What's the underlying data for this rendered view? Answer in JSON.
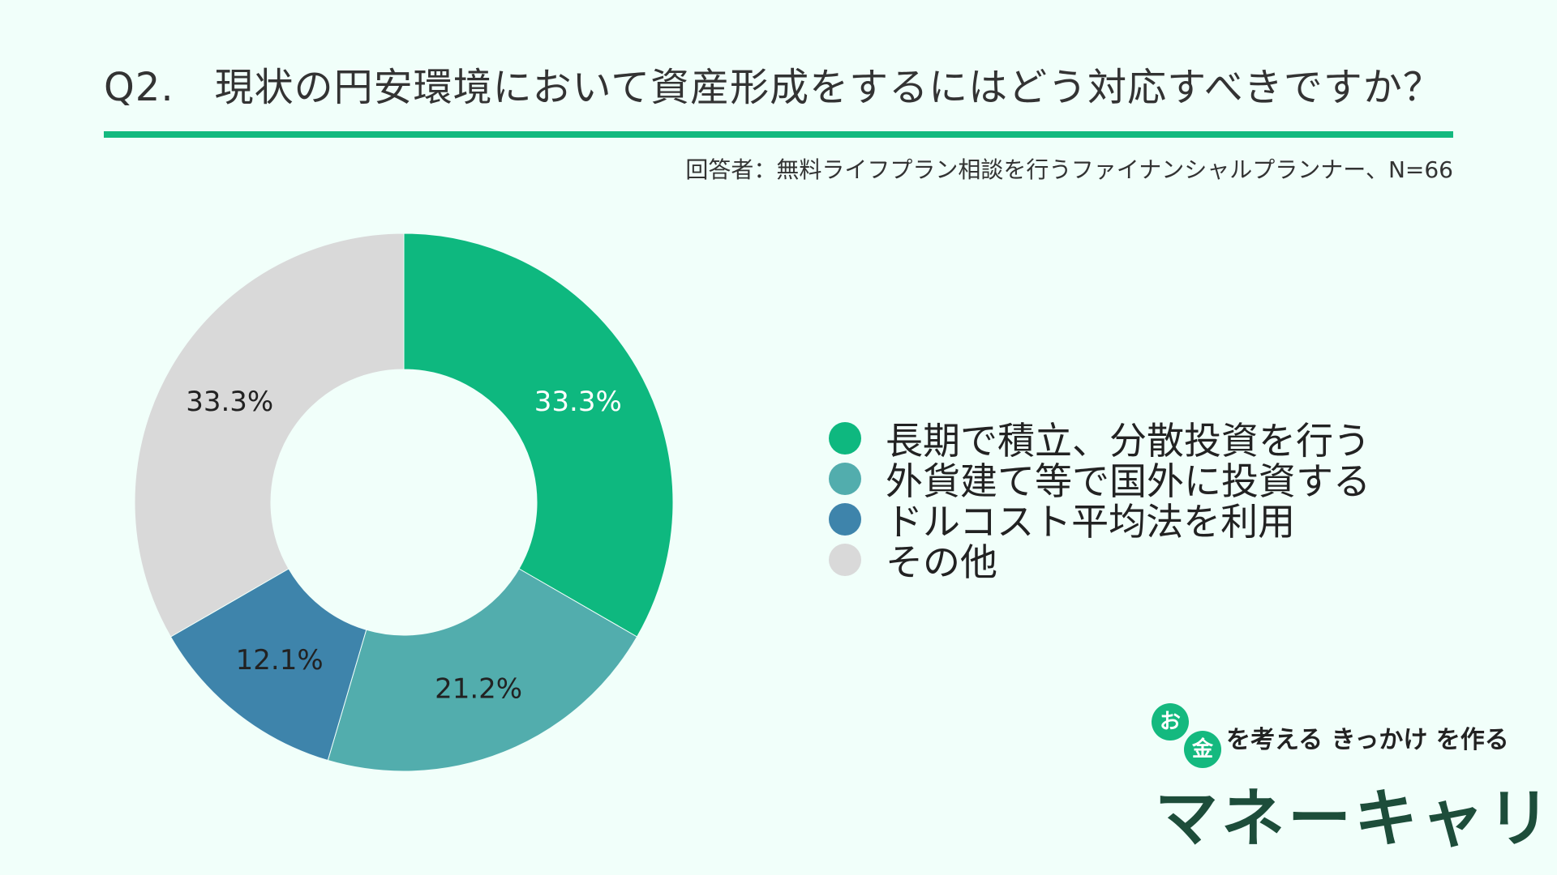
{
  "header": {
    "question_number": "Q2.",
    "question_text": "現状の円安環境において資産形成をするにはどう対応すべきですか？",
    "respondents": "回答者：無料ライフプラン相談を行うファイナンシャルプランナー、N=66"
  },
  "chart_data": {
    "type": "pie",
    "style": "donut",
    "series": [
      {
        "name": "長期で積立、分散投資を行う",
        "value": 33.3,
        "label": "33.3%",
        "color": "#0eb87f",
        "label_color": "#ffffff"
      },
      {
        "name": "外貨建て等で国外に投資する",
        "value": 21.2,
        "label": "21.2%",
        "color": "#52adad",
        "label_color": "#222222"
      },
      {
        "name": "ドルコスト平均法を利用",
        "value": 12.1,
        "label": "12.1%",
        "color": "#3e84ab",
        "label_color": "#222222"
      },
      {
        "name": "その他",
        "value": 33.3,
        "label": "33.3%",
        "color": "#d9d9d9",
        "label_color": "#222222"
      }
    ],
    "start_angle": "top",
    "direction": "clockwise",
    "legend_position": "right"
  },
  "logo": {
    "circle_1": "お",
    "circle_2": "金",
    "tagline": "を考える きっかけ を作る",
    "name": "マネーキャリア",
    "brand_color": "#14b97f",
    "name_color": "#1d4d3a"
  }
}
